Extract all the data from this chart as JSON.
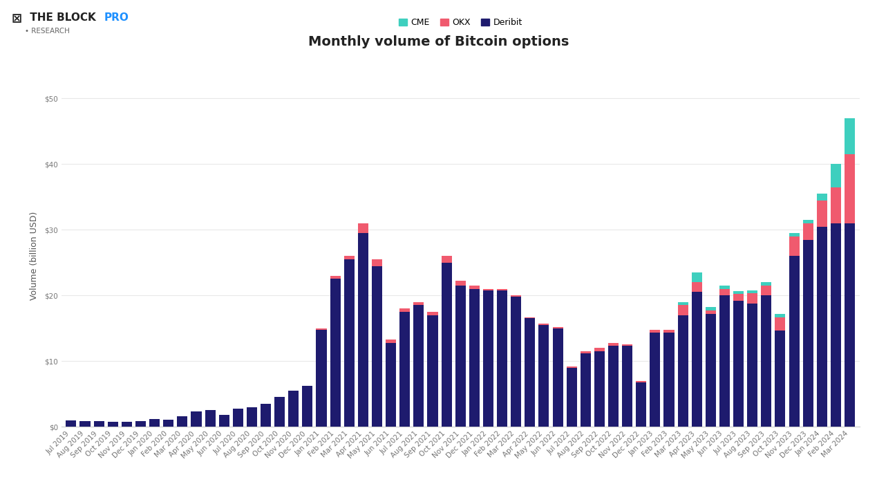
{
  "title": "Monthly volume of Bitcoin options",
  "ylabel": "Volume (billion USD)",
  "colors": {
    "CME": "#3ecfbe",
    "OKX": "#f05a6e",
    "Deribit": "#1e1b6e"
  },
  "months": [
    "Jul 2019",
    "Aug 2019",
    "Sep 2019",
    "Oct 2019",
    "Nov 2019",
    "Dec 2019",
    "Jan 2020",
    "Feb 2020",
    "Mar 2020",
    "Apr 2020",
    "May 2020",
    "Jun 2020",
    "Jul 2020",
    "Aug 2020",
    "Sep 2020",
    "Oct 2020",
    "Nov 2020",
    "Dec 2020",
    "Jan 2021",
    "Feb 2021",
    "Mar 2021",
    "Apr 2021",
    "May 2021",
    "Jun 2021",
    "Jul 2021",
    "Aug 2021",
    "Sep 2021",
    "Oct 2021",
    "Nov 2021",
    "Dec 2021",
    "Jan 2022",
    "Feb 2022",
    "Mar 2022",
    "Apr 2022",
    "May 2022",
    "Jun 2022",
    "Jul 2022",
    "Aug 2022",
    "Sep 2022",
    "Oct 2022",
    "Nov 2022",
    "Dec 2022",
    "Jan 2023",
    "Feb 2023",
    "Mar 2023",
    "Apr 2023",
    "May 2023",
    "Jun 2023",
    "Jul 2023",
    "Aug 2023",
    "Sep 2023",
    "Oct 2023",
    "Nov 2023",
    "Dec 2023",
    "Jan 2024",
    "Feb 2024",
    "Mar 2024"
  ],
  "deribit": [
    1.0,
    0.85,
    0.85,
    0.7,
    0.8,
    0.9,
    1.2,
    1.1,
    1.6,
    2.3,
    2.5,
    1.8,
    2.8,
    3.0,
    3.5,
    4.5,
    5.5,
    6.2,
    14.8,
    22.5,
    25.5,
    29.5,
    24.5,
    12.8,
    17.5,
    18.5,
    17.0,
    25.0,
    21.5,
    21.0,
    20.8,
    20.8,
    19.8,
    16.5,
    15.5,
    15.0,
    9.0,
    11.2,
    11.5,
    12.3,
    12.3,
    6.8,
    14.3,
    14.3,
    17.0,
    20.5,
    17.2,
    20.0,
    19.2,
    18.8,
    20.0,
    14.7,
    26.0,
    28.5,
    30.5,
    31.0,
    31.0
  ],
  "okx": [
    0.0,
    0.0,
    0.0,
    0.0,
    0.0,
    0.0,
    0.0,
    0.0,
    0.0,
    0.0,
    0.0,
    0.0,
    0.0,
    0.0,
    0.0,
    0.0,
    0.0,
    0.0,
    0.2,
    0.5,
    0.5,
    1.5,
    1.0,
    0.5,
    0.5,
    0.5,
    0.5,
    1.0,
    0.7,
    0.5,
    0.2,
    0.2,
    0.2,
    0.2,
    0.2,
    0.2,
    0.2,
    0.3,
    0.5,
    0.5,
    0.2,
    0.2,
    0.5,
    0.5,
    1.5,
    1.5,
    0.5,
    1.0,
    1.0,
    1.5,
    1.5,
    2.0,
    3.0,
    2.5,
    4.0,
    5.5,
    10.5
  ],
  "cme": [
    0.0,
    0.0,
    0.0,
    0.0,
    0.0,
    0.0,
    0.0,
    0.0,
    0.0,
    0.0,
    0.0,
    0.0,
    0.0,
    0.0,
    0.0,
    0.0,
    0.0,
    0.0,
    0.0,
    0.0,
    0.0,
    0.0,
    0.0,
    0.0,
    0.0,
    0.0,
    0.0,
    0.0,
    0.0,
    0.0,
    0.0,
    0.0,
    0.0,
    0.0,
    0.0,
    0.0,
    0.0,
    0.0,
    0.0,
    0.0,
    0.0,
    0.0,
    0.0,
    0.0,
    0.5,
    1.5,
    0.5,
    0.5,
    0.5,
    0.5,
    0.5,
    0.5,
    0.5,
    0.5,
    1.0,
    3.5,
    5.5
  ],
  "ylim": [
    0,
    52
  ],
  "yticks": [
    0,
    10,
    20,
    30,
    40,
    50
  ],
  "background_color": "#ffffff",
  "grid_color": "#e8e8e8",
  "title_fontsize": 14,
  "label_fontsize": 9,
  "tick_fontsize": 7.5
}
